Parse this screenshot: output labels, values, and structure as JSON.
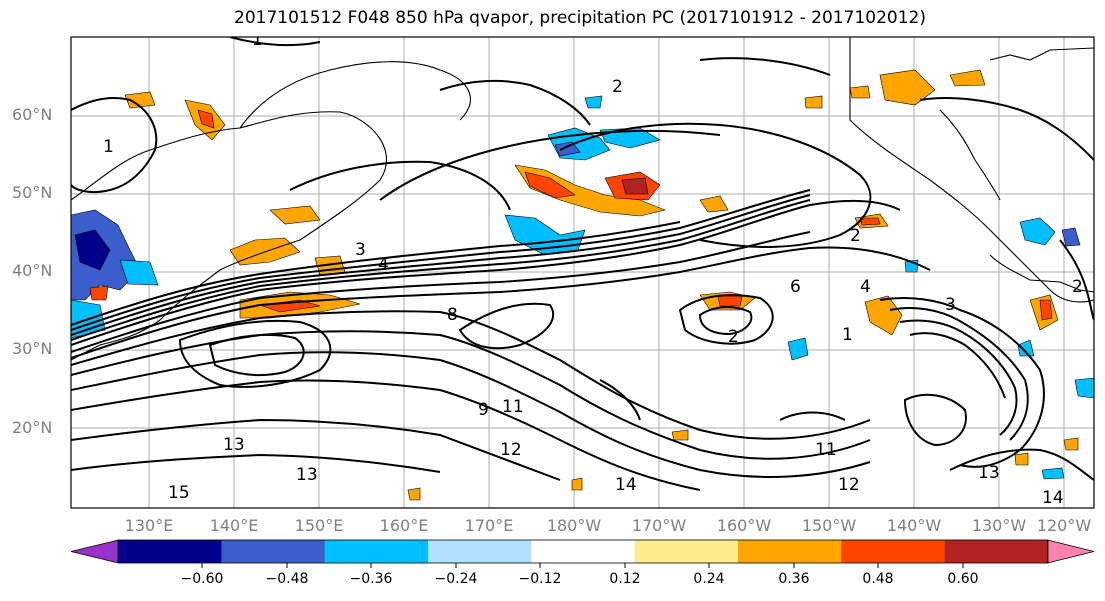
{
  "title": "2017101512 F048 850 hPa qvapor, precipitation PC (2017101912 - 2017102012)",
  "map": {
    "lat_labels": [
      "60°N",
      "50°N",
      "40°N",
      "30°N",
      "20°N"
    ],
    "lon_labels": [
      "130°E",
      "140°E",
      "150°E",
      "160°E",
      "170°E",
      "180°W",
      "170°W",
      "160°W",
      "150°W",
      "140°W",
      "130°W",
      "120°W"
    ],
    "contour_labels": [
      "1",
      "1",
      "2",
      "3",
      "4",
      "6",
      "8",
      "9",
      "11",
      "12",
      "13",
      "13",
      "14",
      "15",
      "2",
      "4",
      "3",
      "2",
      "13",
      "11",
      "12",
      "14",
      "1",
      "2"
    ]
  },
  "colorbar": {
    "tick_labels": [
      "−0.60",
      "−0.48",
      "−0.36",
      "−0.24",
      "−0.12",
      "0.12",
      "0.24",
      "0.36",
      "0.48",
      "0.60"
    ],
    "colors": [
      "#9932cc",
      "#00008b",
      "#3a5fcd",
      "#00bfff",
      "#b0e2ff",
      "#ffffff",
      "#ffec8b",
      "#ffa500",
      "#ff4500",
      "#b22222",
      "#ff82ab"
    ]
  }
}
